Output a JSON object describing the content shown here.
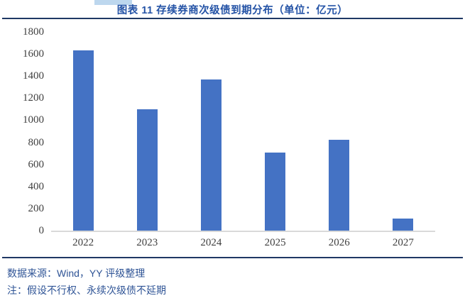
{
  "header": {
    "title": "图表 11 存续券商次级债到期分布（单位：亿元）"
  },
  "chart_data": {
    "type": "bar",
    "title": "图表 11 存续券商次级债到期分布（单位：亿元）",
    "categories": [
      "2022",
      "2023",
      "2024",
      "2025",
      "2026",
      "2027"
    ],
    "values": [
      1630,
      1100,
      1370,
      705,
      825,
      110
    ],
    "xlabel": "",
    "ylabel": "",
    "ylim": [
      0,
      1800
    ],
    "ytick_step": 200,
    "yticks": [
      0,
      200,
      400,
      600,
      800,
      1000,
      1200,
      1400,
      1600,
      1800
    ],
    "grid": false,
    "legend": "none",
    "bar_color": "#4472C4"
  },
  "footer": {
    "source": "数据来源：Wind，YY 评级整理",
    "note": "注：假设不行权、永续次级债不延期"
  },
  "colors": {
    "title_text": "#2453A6",
    "footer_text": "#2F5496",
    "divider": "#1F3864",
    "bar": "#4472C4",
    "axis_line": "#D9D9D9",
    "tick_text": "#3F3F3F",
    "highlight_artifact": "#BDD7EE"
  }
}
